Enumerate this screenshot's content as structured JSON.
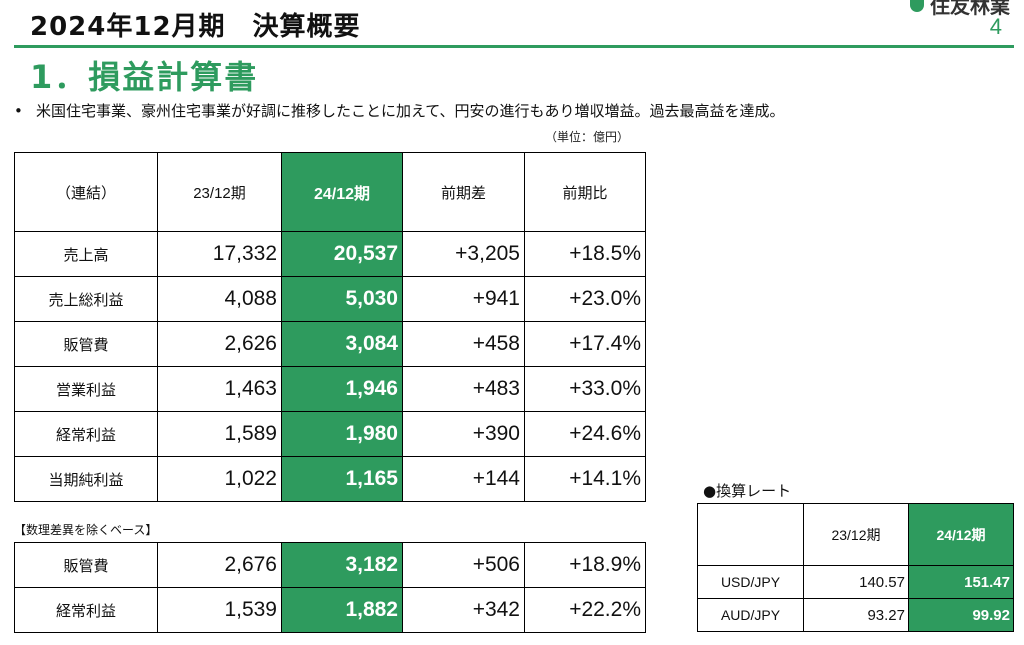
{
  "header": {
    "title": "2024年12月期　決算概要",
    "page_number": "4",
    "logo_text": "住友林業"
  },
  "section_title": "1．損益計算書",
  "bullet": {
    "marker": "•",
    "text": "米国住宅事業、豪州住宅事業が好調に推移したことに加えて、円安の進行もあり増収増益。過去最高益を達成。"
  },
  "unit_note": "（単位：億円）",
  "main_table": {
    "headers": [
      "（連結）",
      "23/12期",
      "24/12期",
      "前期差",
      "前期比"
    ],
    "rows": [
      {
        "label": "売上高",
        "prev": "17,332",
        "curr": "20,537",
        "diff": "+3,205",
        "ratio": "+18.5%"
      },
      {
        "label": "売上総利益",
        "prev": "4,088",
        "curr": "5,030",
        "diff": "+941",
        "ratio": "+23.0%"
      },
      {
        "label": "販管費",
        "prev": "2,626",
        "curr": "3,084",
        "diff": "+458",
        "ratio": "+17.4%"
      },
      {
        "label": "営業利益",
        "prev": "1,463",
        "curr": "1,946",
        "diff": "+483",
        "ratio": "+33.0%"
      },
      {
        "label": "経常利益",
        "prev": "1,589",
        "curr": "1,980",
        "diff": "+390",
        "ratio": "+24.6%"
      },
      {
        "label": "当期純利益",
        "prev": "1,022",
        "curr": "1,165",
        "diff": "+144",
        "ratio": "+14.1%"
      }
    ]
  },
  "adjusted": {
    "caption": "【数理差異を除くベース】",
    "rows": [
      {
        "label": "販管費",
        "prev": "2,676",
        "curr": "3,182",
        "diff": "+506",
        "ratio": "+18.9%"
      },
      {
        "label": "経常利益",
        "prev": "1,539",
        "curr": "1,882",
        "diff": "+342",
        "ratio": "+22.2%"
      }
    ]
  },
  "rates": {
    "caption": "●換算レート",
    "headers": [
      "",
      "23/12期",
      "24/12期"
    ],
    "rows": [
      {
        "label": "USD/JPY",
        "prev": "140.57",
        "curr": "151.47"
      },
      {
        "label": "AUD/JPY",
        "prev": "93.27",
        "curr": "99.92"
      }
    ]
  },
  "colors": {
    "accent": "#2e9b5e"
  }
}
